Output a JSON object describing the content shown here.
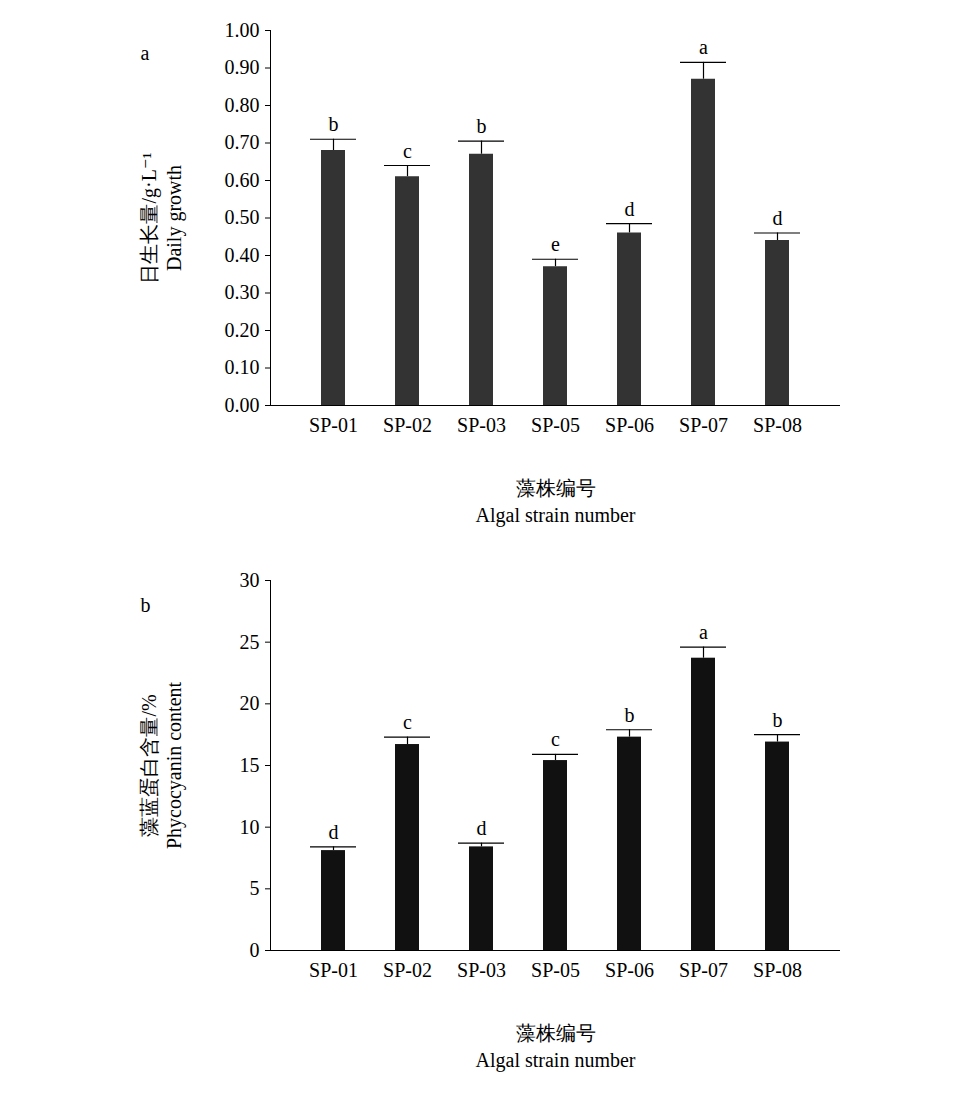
{
  "chart_data": [
    {
      "type": "bar",
      "panel": "a",
      "ylabel": [
        "日生长量/g·L⁻¹",
        "Daily growth"
      ],
      "xlabel": [
        "藻株编号",
        "Algal strain number"
      ],
      "categories": [
        "SP-01",
        "SP-02",
        "SP-03",
        "SP-05",
        "SP-06",
        "SP-07",
        "SP-08"
      ],
      "values": [
        0.68,
        0.61,
        0.67,
        0.37,
        0.46,
        0.87,
        0.44
      ],
      "errors": [
        0.03,
        0.03,
        0.035,
        0.02,
        0.025,
        0.045,
        0.02
      ],
      "significance_labels": [
        "b",
        "c",
        "b",
        "e",
        "d",
        "a",
        "d"
      ],
      "color": "#333333",
      "ylim": [
        0,
        1
      ],
      "yticks": [
        {
          "value": 0,
          "label": "0.00"
        },
        {
          "value": 0.1,
          "label": "0.10"
        },
        {
          "value": 0.2,
          "label": "0.20"
        },
        {
          "value": 0.3,
          "label": "0.30"
        },
        {
          "value": 0.4,
          "label": "0.40"
        },
        {
          "value": 0.5,
          "label": "0.50"
        },
        {
          "value": 0.6,
          "label": "0.60"
        },
        {
          "value": 0.7,
          "label": "0.70"
        },
        {
          "value": 0.8,
          "label": "0.80"
        },
        {
          "value": 0.9,
          "label": "0.90"
        },
        {
          "value": 1,
          "label": "1.00"
        }
      ],
      "grid": false
    },
    {
      "type": "bar",
      "panel": "b",
      "ylabel": [
        "藻蓝蛋白含量/%",
        "Phycocyanin content"
      ],
      "xlabel": [
        "藻株编号",
        "Algal strain number"
      ],
      "categories": [
        "SP-01",
        "SP-02",
        "SP-03",
        "SP-05",
        "SP-06",
        "SP-07",
        "SP-08"
      ],
      "values": [
        8.1,
        16.7,
        8.4,
        15.4,
        17.3,
        23.7,
        16.9
      ],
      "errors": [
        0.3,
        0.6,
        0.3,
        0.5,
        0.6,
        0.9,
        0.6
      ],
      "significance_labels": [
        "d",
        "c",
        "d",
        "c",
        "b",
        "a",
        "b"
      ],
      "color": "#111111",
      "ylim": [
        0,
        30
      ],
      "yticks": [
        0,
        5,
        10,
        15,
        20,
        25,
        30
      ],
      "grid": false
    }
  ]
}
